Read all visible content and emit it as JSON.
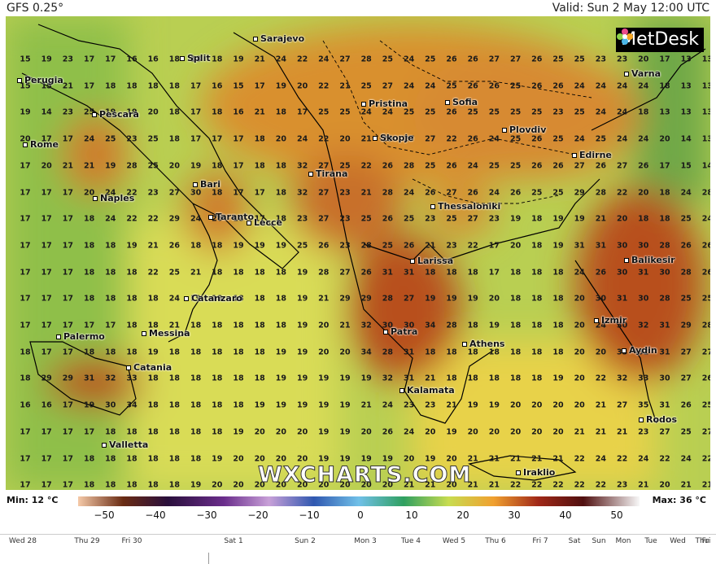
{
  "header": {
    "model": "GFS 0.25°",
    "valid": "Valid: Sun 2 May 12:00 UTC"
  },
  "logo": "MetDesk",
  "watermark": "WXCHARTS.COM",
  "legend": {
    "min_label": "Min: 12 °C",
    "max_label": "Max: 36 °C",
    "ticks": [
      "−50",
      "−40",
      "−30",
      "−20",
      "−10",
      "0",
      "10",
      "20",
      "30",
      "40",
      "50"
    ]
  },
  "timeline": [
    "Wed 28",
    "Thu 29",
    "Fri 30",
    "Sat 1",
    "Sun 2",
    "Mon 3",
    "Tue 4",
    "Wed 5",
    "Thu 6",
    "Fri 7",
    "Sat",
    "Sun",
    "Mon",
    "Tue",
    "Wed",
    "Thu",
    "Fri"
  ],
  "cities": [
    "Sarajevo",
    "Split",
    "Perugia",
    "Varna",
    "Pristina",
    "Sofia",
    "Pescara",
    "Plovdiv",
    "Rome",
    "Skopje",
    "Edirne",
    "Tirana",
    "Bari",
    "Naples",
    "Thessaloniki",
    "Taranto",
    "Lecce",
    "Larissa",
    "Balikesir",
    "Catanzaro",
    "Izmir",
    "Palermo",
    "Messina",
    "Patra",
    "Athens",
    "Aydin",
    "Catania",
    "Kalamata",
    "Rodos",
    "Valletta",
    "Iraklio"
  ],
  "grid_rows": [
    "15 19 23 17 17 16 16 18 18 18 19 21 24 22 24 27 28 25 24 25 26 26 27 27 26 25 25 23 23 20 17 13 13",
    "15 15 21 17 18 18 18 18 17 16 15 17 19 20 22 21 25 27 24 24 25 26 26 25 26 26 24 24 24 24 18 13 13",
    "19 14 23 25 19 19 20 18 17 18 16 21 18 17 25 25 24 24 25 25 26 25 25 25 25 23 25 24 24 18 13 13 13",
    "20 17 17 24 25 23 25 18 17 17 17 18 20 24 22 20 21 23 27 27 22 26 24 25 26 25 24 25 24 24 20 14 13",
    "17 20 21 21 19 28 25 20 19 18 17 18 18 32 27 25 22 26 28 25 26 24 25 25 26 26 27 26 27 26 17 15 14",
    "17 17 17 20 24 22 23 27 30 18 17 17 18 32 27 23 21 28 24 26 27 26 24 26 25 25 29 28 22 20 18 24 28",
    "17 17 17 18 24 22 22 29 24 26 18 17 18 23 27 23 25 26 25 23 25 27 23 19 18 19 19 21 20 18 18 25 24",
    "17 17 17 18 18 19 21 26 18 18 19 19 19 25 26 23 28 25 26 21 23 22 17 20 18 19 31 31 30 30 28 26 26",
    "17 17 17 18 18 18 22 25 21 18 18 18 18 19 28 27 26 31 31 18 18 18 17 18 18 18 24 26 30 31 30 28 26",
    "17 17 17 18 18 18 18 24 19 18 18 18 18 19 21 29 29 28 27 19 19 19 20 18 18 18 20 30 31 30 28 25 25",
    "17 17 17 17 17 18 18 21 18 18 18 18 18 19 20 21 32 30 30 34 28 18 19 18 18 18 20 24 30 32 31 29 28",
    "18 17 17 18 18 18 19 18 18 18 18 18 19 19 20 20 34 28 31 18 18 18 18 18 18 18 20 20 33 32 31 27 27",
    "18 29 29 31 32 33 18 18 18 18 18 18 19 19 19 19 19 32 31 21 18 18 18 18 18 19 20 22 32 33 30 27 26",
    "16 16 17 19 30 34 18 18 18 18 18 19 19 19 19 19 21 24 23 23 21 19 19 20 20 20 20 21 27 35 31 26 25",
    "17 17 17 17 18 18 18 18 18 18 19 20 20 20 19 19 20 26 24 20 19 20 20 20 20 20 21 21 21 23 27 25 27",
    "17 17 17 18 18 18 18 18 18 19 20 20 20 20 19 19 19 19 20 19 20 21 21 21 21 21 22 24 22 24 22 24 22",
    "17 17 17 18 18 18 18 18 19 20 20 20 20 20 20 20 20 20 21 21 20 21 21 22 22 22 22 22 23 21 20 21 21"
  ],
  "colors": {
    "cool": "#8fbf4a",
    "mild": "#d8dc58",
    "warm": "#e8a440",
    "hot": "#c55a20",
    "sea_line": "#000000"
  }
}
